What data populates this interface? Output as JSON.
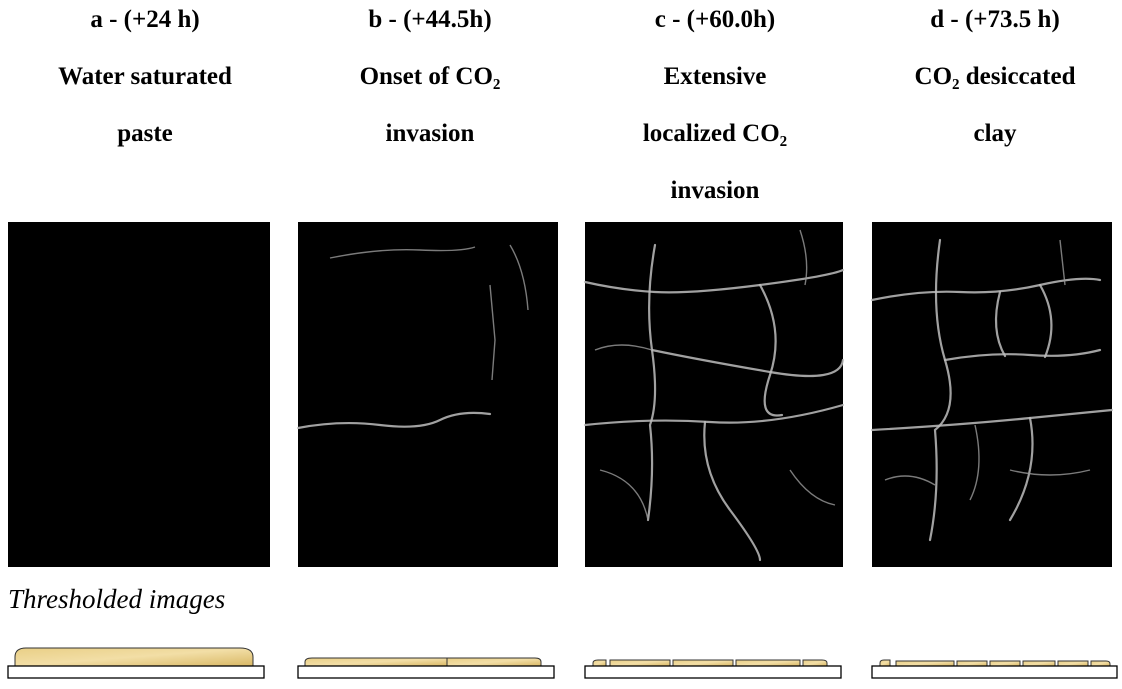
{
  "columns": [
    {
      "label": "a - (+24 h)",
      "description_lines": [
        "Water saturated",
        "paste"
      ]
    },
    {
      "label": "b - (+44.5h)",
      "description_lines": [
        "Onset of CO₂",
        "invasion"
      ]
    },
    {
      "label": "c - (+60.0h)",
      "description_lines": [
        "Extensive",
        "localized CO₂",
        "invasion"
      ]
    },
    {
      "label": "d - (+73.5 h)",
      "description_lines": [
        "CO₂ desiccated",
        "clay"
      ]
    }
  ],
  "caption": "Thresholded images"
}
